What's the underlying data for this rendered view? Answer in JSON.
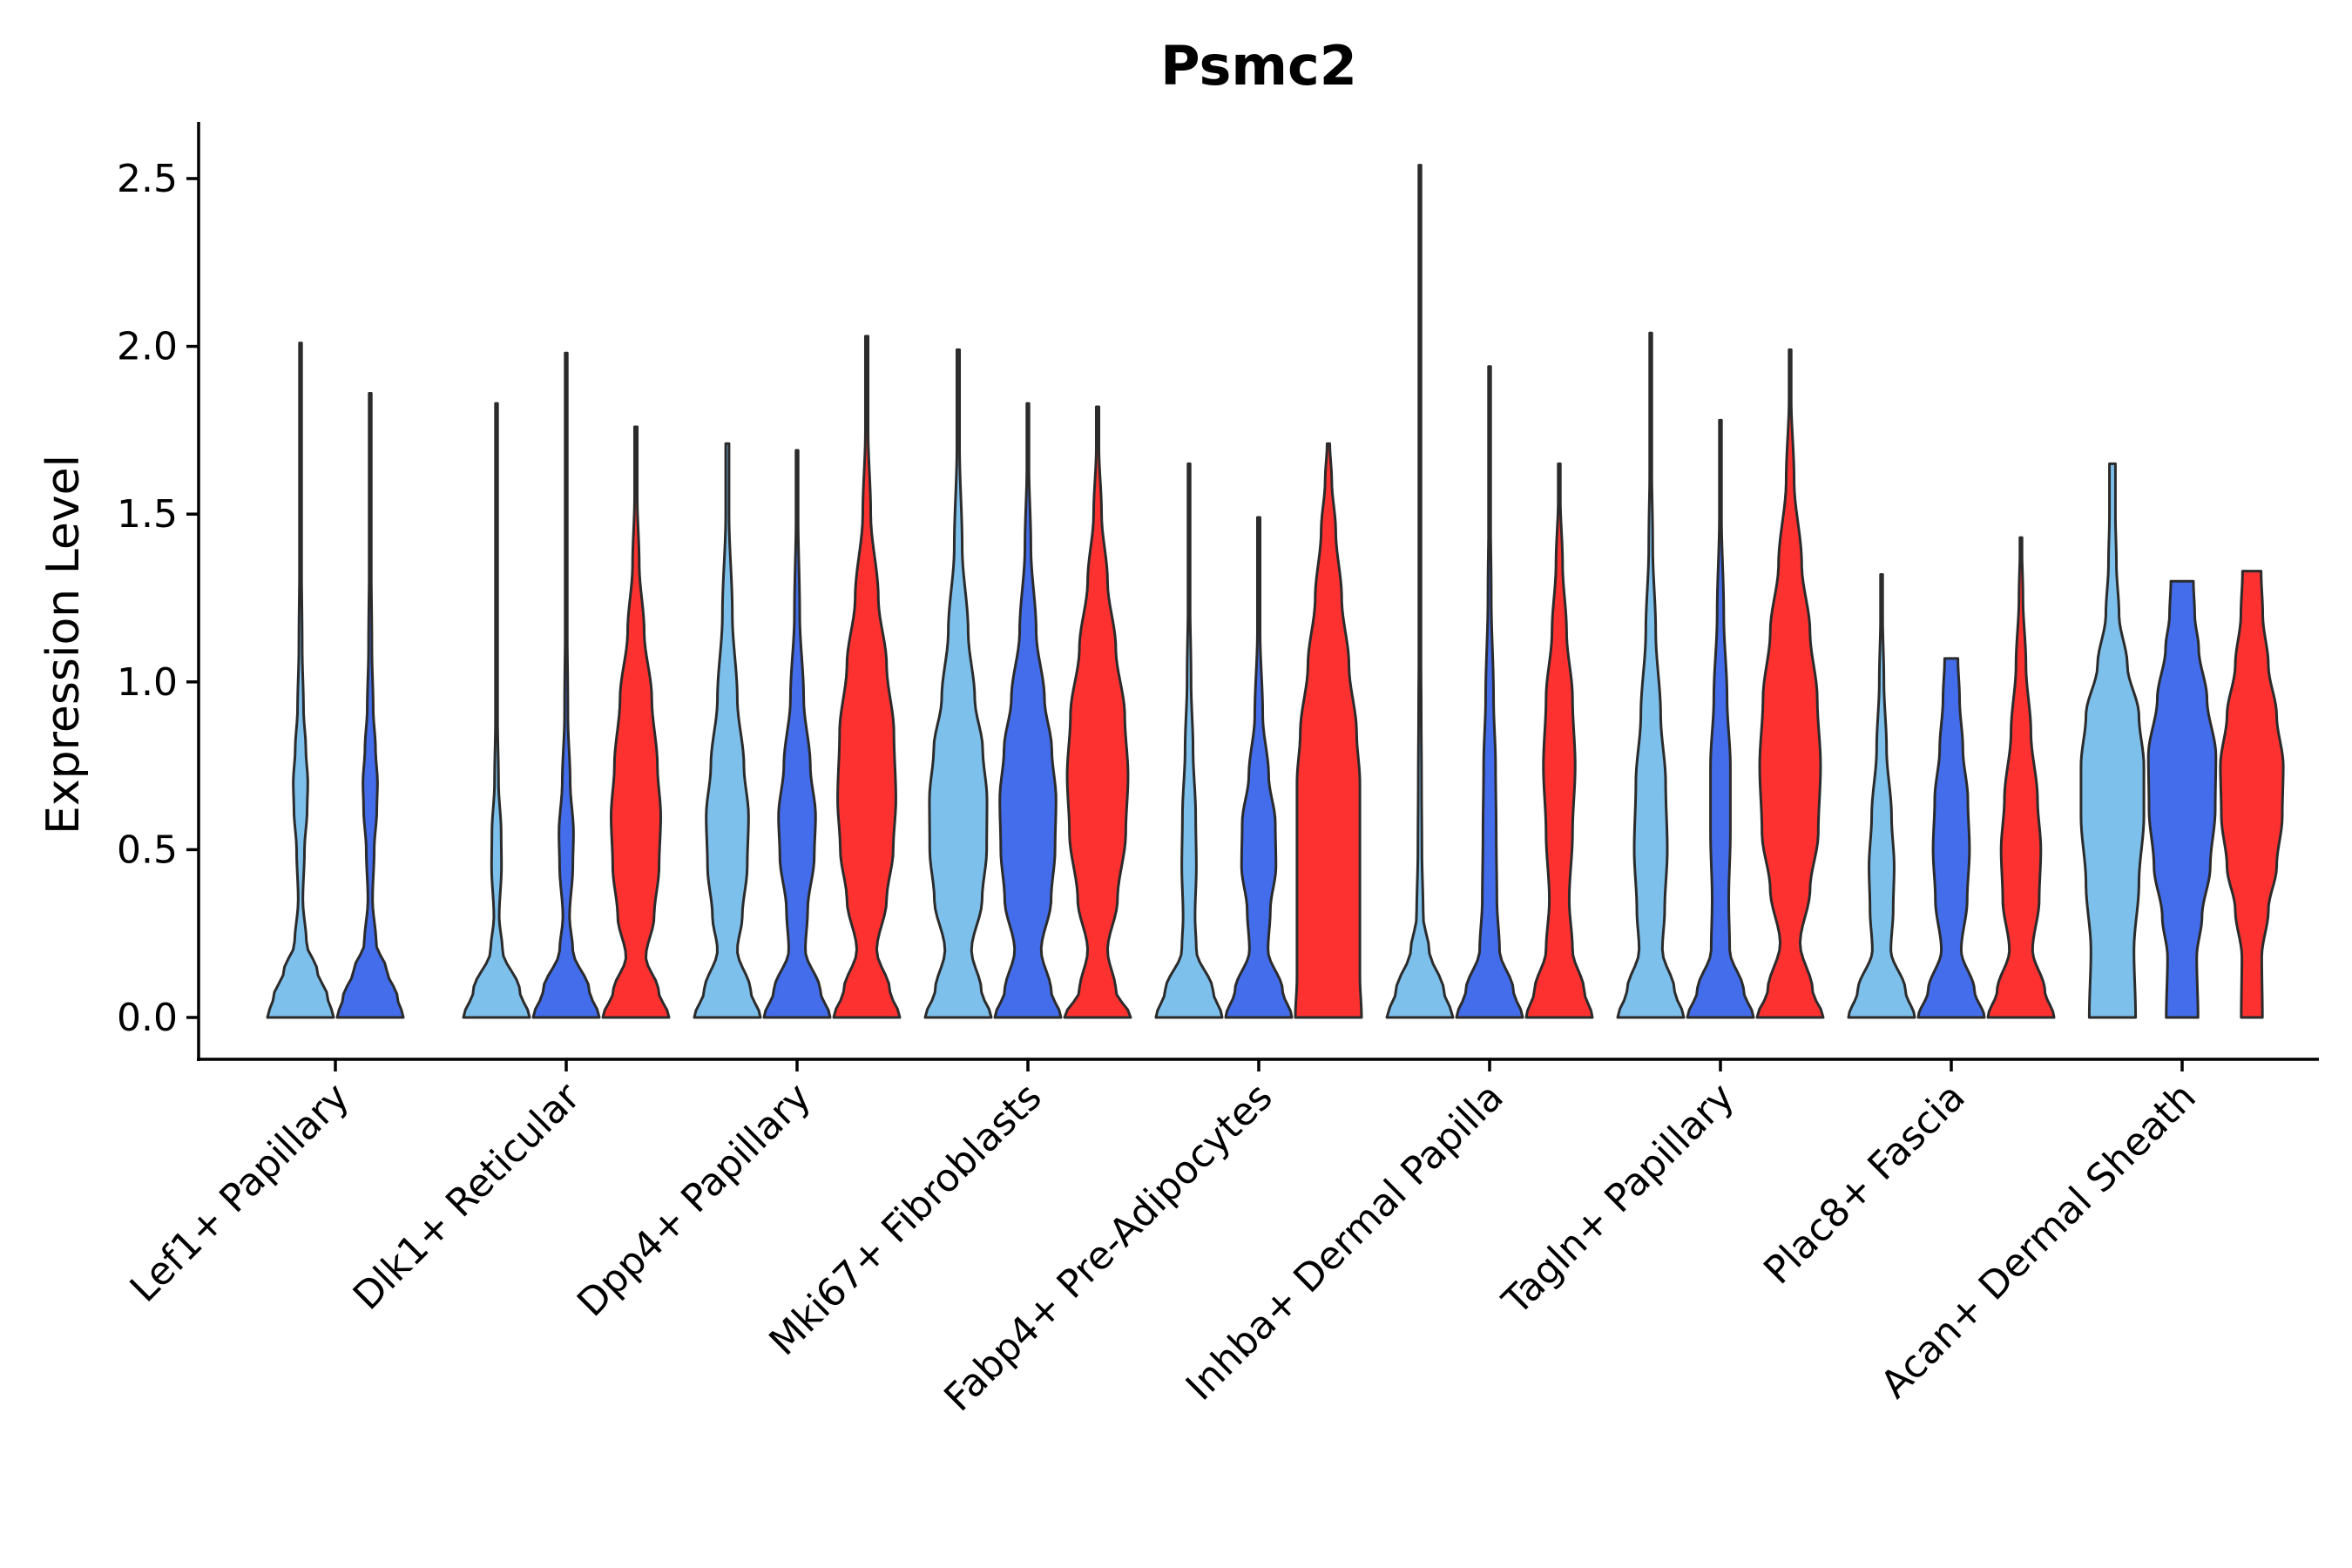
{
  "chart_data": {
    "type": "violin",
    "title": "Psmc2",
    "ylabel": "Expression Level",
    "xlabel": "",
    "ylim": [
      -0.12,
      2.66
    ],
    "yticks": [
      "0.0",
      "0.5",
      "1.0",
      "1.5",
      "2.0",
      "2.5"
    ],
    "categories": [
      "Lef1+ Papillary",
      "Dlk1+ Reticular",
      "Dpp4+ Papillary",
      "Mki67+ Fibroblasts",
      "Fabp4+ Pre-Adipocytes",
      "Inhba+ Dermal Papilla",
      "Tagln+ Papillary",
      "Plac8+ Fascia",
      "Acan+ Dermal Sheath"
    ],
    "series": [
      {
        "name": "group1",
        "color": "#7dc0ec"
      },
      {
        "name": "group2",
        "color": "#436deb"
      },
      {
        "name": "group3",
        "color": "#fe3131"
      }
    ],
    "violins": [
      {
        "category": 0,
        "series": 0,
        "max": 2.01,
        "profile": [
          [
            0,
            1
          ],
          [
            0.06,
            0.82
          ],
          [
            0.14,
            0.5
          ],
          [
            0.22,
            0.18
          ],
          [
            0.35,
            0.07
          ],
          [
            0.5,
            0.12
          ],
          [
            0.62,
            0.2
          ],
          [
            0.7,
            0.22
          ],
          [
            0.8,
            0.16
          ],
          [
            0.92,
            0.09
          ],
          [
            1.1,
            0.05
          ],
          [
            1.4,
            0.025
          ],
          [
            1.7,
            0.01
          ]
        ]
      },
      {
        "category": 0,
        "series": 1,
        "max": 1.86,
        "profile": [
          [
            0,
            1
          ],
          [
            0.06,
            0.82
          ],
          [
            0.14,
            0.5
          ],
          [
            0.22,
            0.18
          ],
          [
            0.35,
            0.07
          ],
          [
            0.5,
            0.12
          ],
          [
            0.62,
            0.2
          ],
          [
            0.7,
            0.22
          ],
          [
            0.8,
            0.16
          ],
          [
            0.92,
            0.09
          ],
          [
            1.1,
            0.05
          ],
          [
            1.4,
            0.025
          ],
          [
            1.7,
            0.01
          ]
        ]
      },
      {
        "category": 1,
        "series": 0,
        "max": 1.83,
        "profile": [
          [
            0,
            1
          ],
          [
            0.08,
            0.7
          ],
          [
            0.2,
            0.18
          ],
          [
            0.3,
            0.08
          ],
          [
            0.45,
            0.15
          ],
          [
            0.55,
            0.14
          ],
          [
            0.7,
            0.06
          ],
          [
            0.9,
            0.03
          ],
          [
            1.3,
            0.012
          ]
        ]
      },
      {
        "category": 1,
        "series": 1,
        "max": 1.98,
        "profile": [
          [
            0,
            1
          ],
          [
            0.08,
            0.7
          ],
          [
            0.2,
            0.2
          ],
          [
            0.3,
            0.1
          ],
          [
            0.45,
            0.2
          ],
          [
            0.55,
            0.22
          ],
          [
            0.7,
            0.12
          ],
          [
            0.9,
            0.05
          ],
          [
            1.3,
            0.015
          ]
        ]
      },
      {
        "category": 1,
        "series": 2,
        "max": 1.76,
        "profile": [
          [
            0,
            1
          ],
          [
            0.08,
            0.68
          ],
          [
            0.18,
            0.3
          ],
          [
            0.3,
            0.55
          ],
          [
            0.45,
            0.7
          ],
          [
            0.6,
            0.75
          ],
          [
            0.75,
            0.65
          ],
          [
            0.95,
            0.48
          ],
          [
            1.15,
            0.25
          ],
          [
            1.35,
            0.1
          ],
          [
            1.55,
            0.04
          ]
        ]
      },
      {
        "category": 2,
        "series": 0,
        "max": 1.71,
        "profile": [
          [
            0,
            1
          ],
          [
            0.08,
            0.7
          ],
          [
            0.2,
            0.3
          ],
          [
            0.3,
            0.45
          ],
          [
            0.45,
            0.6
          ],
          [
            0.6,
            0.64
          ],
          [
            0.75,
            0.5
          ],
          [
            0.95,
            0.3
          ],
          [
            1.2,
            0.15
          ],
          [
            1.5,
            0.05
          ]
        ]
      },
      {
        "category": 2,
        "series": 1,
        "max": 1.69,
        "profile": [
          [
            0,
            1
          ],
          [
            0.08,
            0.7
          ],
          [
            0.2,
            0.25
          ],
          [
            0.32,
            0.32
          ],
          [
            0.48,
            0.52
          ],
          [
            0.6,
            0.56
          ],
          [
            0.75,
            0.4
          ],
          [
            0.95,
            0.2
          ],
          [
            1.2,
            0.08
          ],
          [
            1.5,
            0.03
          ]
        ]
      },
      {
        "category": 2,
        "series": 2,
        "max": 2.03,
        "profile": [
          [
            0,
            1
          ],
          [
            0.08,
            0.7
          ],
          [
            0.2,
            0.3
          ],
          [
            0.35,
            0.6
          ],
          [
            0.5,
            0.8
          ],
          [
            0.65,
            0.88
          ],
          [
            0.85,
            0.82
          ],
          [
            1.05,
            0.6
          ],
          [
            1.25,
            0.35
          ],
          [
            1.5,
            0.12
          ],
          [
            1.75,
            0.04
          ]
        ]
      },
      {
        "category": 3,
        "series": 0,
        "max": 1.99,
        "profile": [
          [
            0,
            1
          ],
          [
            0.08,
            0.7
          ],
          [
            0.2,
            0.4
          ],
          [
            0.35,
            0.72
          ],
          [
            0.5,
            0.86
          ],
          [
            0.65,
            0.87
          ],
          [
            0.8,
            0.74
          ],
          [
            0.95,
            0.5
          ],
          [
            1.15,
            0.3
          ],
          [
            1.4,
            0.12
          ],
          [
            1.7,
            0.04
          ]
        ]
      },
      {
        "category": 3,
        "series": 1,
        "max": 1.83,
        "profile": [
          [
            0,
            1
          ],
          [
            0.08,
            0.7
          ],
          [
            0.2,
            0.4
          ],
          [
            0.35,
            0.7
          ],
          [
            0.5,
            0.82
          ],
          [
            0.65,
            0.85
          ],
          [
            0.8,
            0.72
          ],
          [
            0.95,
            0.5
          ],
          [
            1.15,
            0.25
          ],
          [
            1.4,
            0.09
          ],
          [
            1.65,
            0.03
          ]
        ]
      },
      {
        "category": 3,
        "series": 2,
        "max": 1.82,
        "profile": [
          [
            0,
            1
          ],
          [
            0.08,
            0.55
          ],
          [
            0.2,
            0.3
          ],
          [
            0.35,
            0.6
          ],
          [
            0.55,
            0.85
          ],
          [
            0.72,
            0.92
          ],
          [
            0.9,
            0.82
          ],
          [
            1.1,
            0.55
          ],
          [
            1.3,
            0.3
          ],
          [
            1.5,
            0.12
          ],
          [
            1.7,
            0.04
          ]
        ]
      },
      {
        "category": 4,
        "series": 0,
        "max": 1.65,
        "profile": [
          [
            0,
            1
          ],
          [
            0.08,
            0.72
          ],
          [
            0.2,
            0.22
          ],
          [
            0.3,
            0.18
          ],
          [
            0.45,
            0.22
          ],
          [
            0.6,
            0.2
          ],
          [
            0.8,
            0.12
          ],
          [
            1.0,
            0.06
          ],
          [
            1.3,
            0.02
          ]
        ]
      },
      {
        "category": 4,
        "series": 1,
        "max": 1.49,
        "profile": [
          [
            0,
            1
          ],
          [
            0.08,
            0.72
          ],
          [
            0.2,
            0.28
          ],
          [
            0.32,
            0.35
          ],
          [
            0.45,
            0.52
          ],
          [
            0.58,
            0.5
          ],
          [
            0.72,
            0.3
          ],
          [
            0.9,
            0.12
          ],
          [
            1.15,
            0.04
          ]
        ]
      },
      {
        "category": 4,
        "series": 2,
        "max": 1.71,
        "profile": [
          [
            0,
            1
          ],
          [
            0.12,
            0.95
          ],
          [
            0.3,
            0.95
          ],
          [
            0.5,
            0.95
          ],
          [
            0.7,
            0.95
          ],
          [
            0.85,
            0.85
          ],
          [
            1.05,
            0.62
          ],
          [
            1.25,
            0.4
          ],
          [
            1.45,
            0.22
          ],
          [
            1.6,
            0.1
          ],
          [
            1.71,
            0.04
          ]
        ]
      },
      {
        "category": 5,
        "series": 0,
        "max": 2.54,
        "profile": [
          [
            0,
            1
          ],
          [
            0.08,
            0.72
          ],
          [
            0.2,
            0.28
          ],
          [
            0.3,
            0.1
          ],
          [
            0.5,
            0.06
          ],
          [
            0.7,
            0.05
          ],
          [
            0.9,
            0.04
          ],
          [
            1.2,
            0.02
          ],
          [
            1.6,
            0.01
          ]
        ]
      },
      {
        "category": 5,
        "series": 1,
        "max": 1.94,
        "profile": [
          [
            0,
            1
          ],
          [
            0.08,
            0.72
          ],
          [
            0.2,
            0.3
          ],
          [
            0.35,
            0.22
          ],
          [
            0.55,
            0.2
          ],
          [
            0.75,
            0.18
          ],
          [
            0.95,
            0.12
          ],
          [
            1.25,
            0.05
          ],
          [
            1.6,
            0.015
          ]
        ]
      },
      {
        "category": 5,
        "series": 2,
        "max": 1.65,
        "profile": [
          [
            0,
            1
          ],
          [
            0.08,
            0.75
          ],
          [
            0.2,
            0.4
          ],
          [
            0.35,
            0.3
          ],
          [
            0.55,
            0.4
          ],
          [
            0.75,
            0.48
          ],
          [
            0.95,
            0.4
          ],
          [
            1.15,
            0.22
          ],
          [
            1.35,
            0.1
          ],
          [
            1.55,
            0.03
          ]
        ]
      },
      {
        "category": 6,
        "series": 0,
        "max": 2.04,
        "profile": [
          [
            0,
            1
          ],
          [
            0.08,
            0.72
          ],
          [
            0.2,
            0.35
          ],
          [
            0.32,
            0.42
          ],
          [
            0.5,
            0.5
          ],
          [
            0.7,
            0.45
          ],
          [
            0.9,
            0.3
          ],
          [
            1.15,
            0.15
          ],
          [
            1.4,
            0.06
          ],
          [
            1.7,
            0.02
          ]
        ]
      },
      {
        "category": 6,
        "series": 1,
        "max": 1.78,
        "profile": [
          [
            0,
            1
          ],
          [
            0.08,
            0.7
          ],
          [
            0.2,
            0.28
          ],
          [
            0.35,
            0.25
          ],
          [
            0.55,
            0.3
          ],
          [
            0.75,
            0.3
          ],
          [
            0.95,
            0.2
          ],
          [
            1.2,
            0.1
          ],
          [
            1.5,
            0.03
          ]
        ]
      },
      {
        "category": 6,
        "series": 2,
        "max": 1.99,
        "profile": [
          [
            0,
            1
          ],
          [
            0.08,
            0.68
          ],
          [
            0.22,
            0.3
          ],
          [
            0.38,
            0.6
          ],
          [
            0.55,
            0.85
          ],
          [
            0.75,
            0.92
          ],
          [
            0.95,
            0.82
          ],
          [
            1.15,
            0.6
          ],
          [
            1.35,
            0.35
          ],
          [
            1.6,
            0.12
          ],
          [
            1.85,
            0.03
          ]
        ]
      },
      {
        "category": 7,
        "series": 0,
        "max": 1.32,
        "profile": [
          [
            0,
            1
          ],
          [
            0.08,
            0.72
          ],
          [
            0.2,
            0.28
          ],
          [
            0.32,
            0.35
          ],
          [
            0.45,
            0.38
          ],
          [
            0.6,
            0.3
          ],
          [
            0.8,
            0.15
          ],
          [
            1.0,
            0.07
          ],
          [
            1.2,
            0.03
          ],
          [
            1.32,
            0.02
          ]
        ]
      },
      {
        "category": 7,
        "series": 1,
        "max": 1.07,
        "profile": [
          [
            0,
            1
          ],
          [
            0.08,
            0.7
          ],
          [
            0.2,
            0.3
          ],
          [
            0.35,
            0.48
          ],
          [
            0.5,
            0.55
          ],
          [
            0.65,
            0.5
          ],
          [
            0.8,
            0.35
          ],
          [
            0.95,
            0.25
          ],
          [
            1.07,
            0.2
          ]
        ]
      },
      {
        "category": 7,
        "series": 2,
        "max": 1.43,
        "profile": [
          [
            0,
            1
          ],
          [
            0.08,
            0.72
          ],
          [
            0.2,
            0.35
          ],
          [
            0.35,
            0.55
          ],
          [
            0.5,
            0.6
          ],
          [
            0.65,
            0.5
          ],
          [
            0.85,
            0.3
          ],
          [
            1.05,
            0.15
          ],
          [
            1.25,
            0.06
          ],
          [
            1.43,
            0.02
          ]
        ]
      },
      {
        "category": 8,
        "series": 0,
        "max": 1.65,
        "profile": [
          [
            0,
            0.7
          ],
          [
            0.2,
            0.65
          ],
          [
            0.4,
            0.8
          ],
          [
            0.6,
            0.95
          ],
          [
            0.75,
            0.95
          ],
          [
            0.9,
            0.8
          ],
          [
            1.05,
            0.45
          ],
          [
            1.2,
            0.2
          ],
          [
            1.35,
            0.12
          ],
          [
            1.5,
            0.09
          ],
          [
            1.65,
            0.09
          ]
        ]
      },
      {
        "category": 8,
        "series": 1,
        "max": 1.3,
        "profile": [
          [
            0,
            0.48
          ],
          [
            0.18,
            0.44
          ],
          [
            0.3,
            0.6
          ],
          [
            0.45,
            0.85
          ],
          [
            0.62,
            1.0
          ],
          [
            0.78,
            1.02
          ],
          [
            0.95,
            0.75
          ],
          [
            1.1,
            0.5
          ],
          [
            1.2,
            0.38
          ],
          [
            1.3,
            0.34
          ]
        ]
      },
      {
        "category": 8,
        "series": 2,
        "max": 1.33,
        "profile": [
          [
            0,
            0.32
          ],
          [
            0.18,
            0.3
          ],
          [
            0.32,
            0.5
          ],
          [
            0.45,
            0.75
          ],
          [
            0.6,
            0.92
          ],
          [
            0.75,
            0.95
          ],
          [
            0.9,
            0.75
          ],
          [
            1.05,
            0.5
          ],
          [
            1.2,
            0.33
          ],
          [
            1.33,
            0.28
          ]
        ]
      }
    ]
  }
}
